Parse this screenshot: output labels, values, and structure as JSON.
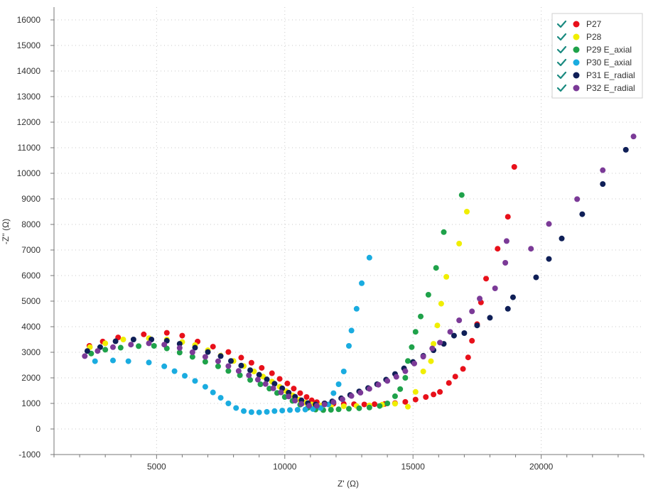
{
  "chart_data": {
    "type": "scatter",
    "xlabel": "Z' (Ω)",
    "ylabel": "-Z'' (Ω)",
    "xlim": [
      1000,
      24000
    ],
    "ylim": [
      -1000,
      16500
    ],
    "x_ticks": [
      5000,
      10000,
      15000,
      20000
    ],
    "x_tick_labels": [
      "5000",
      "10000",
      "15000",
      "20000"
    ],
    "y_ticks": [
      -1000,
      0,
      1000,
      2000,
      3000,
      4000,
      5000,
      6000,
      7000,
      8000,
      9000,
      10000,
      11000,
      12000,
      13000,
      14000,
      15000,
      16000
    ],
    "y_tick_labels": [
      "-1000",
      "0",
      "1000",
      "2000",
      "3000",
      "4000",
      "5000",
      "6000",
      "7000",
      "8000",
      "9000",
      "10000",
      "11000",
      "12000",
      "13000",
      "14000",
      "15000",
      "16000"
    ],
    "grid": true,
    "legend_position": "top-right",
    "series": [
      {
        "name": "P27",
        "color": "#e8101a",
        "points": [
          [
            2380,
            3250
          ],
          [
            2900,
            3420
          ],
          [
            3500,
            3580
          ],
          [
            4500,
            3700
          ],
          [
            5400,
            3760
          ],
          [
            6000,
            3650
          ],
          [
            6600,
            3420
          ],
          [
            7200,
            3220
          ],
          [
            7800,
            3010
          ],
          [
            8300,
            2790
          ],
          [
            8700,
            2590
          ],
          [
            9100,
            2390
          ],
          [
            9500,
            2180
          ],
          [
            9800,
            1960
          ],
          [
            10100,
            1780
          ],
          [
            10350,
            1580
          ],
          [
            10600,
            1400
          ],
          [
            10850,
            1250
          ],
          [
            11050,
            1120
          ],
          [
            11250,
            1050
          ],
          [
            11550,
            1000
          ],
          [
            11900,
            990
          ],
          [
            12300,
            980
          ],
          [
            12700,
            970
          ],
          [
            13100,
            960
          ],
          [
            13500,
            970
          ],
          [
            13900,
            980
          ],
          [
            14300,
            1010
          ],
          [
            14700,
            1060
          ],
          [
            15100,
            1150
          ],
          [
            15500,
            1250
          ],
          [
            15800,
            1350
          ],
          [
            16050,
            1450
          ],
          [
            16400,
            1800
          ],
          [
            16650,
            2050
          ],
          [
            16950,
            2350
          ],
          [
            17150,
            2800
          ],
          [
            17300,
            3450
          ],
          [
            17500,
            4100
          ],
          [
            17650,
            4950
          ],
          [
            17850,
            5880
          ],
          [
            18300,
            7050
          ],
          [
            18700,
            8300
          ],
          [
            18950,
            10250
          ]
        ]
      },
      {
        "name": "P28",
        "color": "#f0ee00",
        "points": [
          [
            2400,
            3200
          ],
          [
            3000,
            3350
          ],
          [
            3700,
            3500
          ],
          [
            4700,
            3550
          ],
          [
            5400,
            3500
          ],
          [
            6000,
            3400
          ],
          [
            6500,
            3280
          ],
          [
            7000,
            3080
          ],
          [
            7500,
            2870
          ],
          [
            8000,
            2660
          ],
          [
            8400,
            2460
          ],
          [
            8800,
            2250
          ],
          [
            9150,
            2050
          ],
          [
            9500,
            1850
          ],
          [
            9800,
            1650
          ],
          [
            10050,
            1480
          ],
          [
            10300,
            1320
          ],
          [
            10550,
            1150
          ],
          [
            10800,
            1030
          ],
          [
            11050,
            960
          ],
          [
            11400,
            920
          ],
          [
            11800,
            900
          ],
          [
            12300,
            890
          ],
          [
            12800,
            900
          ],
          [
            13300,
            920
          ],
          [
            13800,
            950
          ],
          [
            14300,
            990
          ],
          [
            14800,
            870
          ],
          [
            15100,
            1450
          ],
          [
            15400,
            2250
          ],
          [
            15700,
            2650
          ],
          [
            15800,
            3330
          ],
          [
            15950,
            4050
          ],
          [
            16100,
            4900
          ],
          [
            16300,
            5950
          ],
          [
            16800,
            7250
          ],
          [
            17100,
            8500
          ]
        ]
      },
      {
        "name": "P29 E_axial",
        "color": "#1fa24a",
        "points": [
          [
            2450,
            2950
          ],
          [
            3000,
            3100
          ],
          [
            3600,
            3180
          ],
          [
            4300,
            3240
          ],
          [
            4900,
            3250
          ],
          [
            5400,
            3150
          ],
          [
            5900,
            2990
          ],
          [
            6400,
            2820
          ],
          [
            6900,
            2630
          ],
          [
            7400,
            2450
          ],
          [
            7800,
            2270
          ],
          [
            8250,
            2100
          ],
          [
            8650,
            1920
          ],
          [
            9050,
            1750
          ],
          [
            9400,
            1580
          ],
          [
            9700,
            1410
          ],
          [
            10000,
            1250
          ],
          [
            10300,
            1100
          ],
          [
            10600,
            950
          ],
          [
            10900,
            830
          ],
          [
            11200,
            760
          ],
          [
            11500,
            740
          ],
          [
            11800,
            750
          ],
          [
            12100,
            770
          ],
          [
            12500,
            790
          ],
          [
            12900,
            810
          ],
          [
            13300,
            840
          ],
          [
            13700,
            900
          ],
          [
            14000,
            1000
          ],
          [
            14300,
            1280
          ],
          [
            14500,
            1560
          ],
          [
            14700,
            2000
          ],
          [
            14800,
            2660
          ],
          [
            14950,
            3200
          ],
          [
            15100,
            3800
          ],
          [
            15300,
            4400
          ],
          [
            15600,
            5250
          ],
          [
            15900,
            6300
          ],
          [
            16200,
            7700
          ],
          [
            16900,
            9150
          ]
        ]
      },
      {
        "name": "P30 E_axial",
        "color": "#1aace0",
        "points": [
          [
            2600,
            2650
          ],
          [
            3300,
            2680
          ],
          [
            3900,
            2650
          ],
          [
            4700,
            2600
          ],
          [
            5300,
            2450
          ],
          [
            5700,
            2260
          ],
          [
            6100,
            2080
          ],
          [
            6500,
            1880
          ],
          [
            6900,
            1650
          ],
          [
            7200,
            1430
          ],
          [
            7500,
            1220
          ],
          [
            7800,
            1000
          ],
          [
            8100,
            820
          ],
          [
            8400,
            700
          ],
          [
            8700,
            660
          ],
          [
            9000,
            650
          ],
          [
            9300,
            670
          ],
          [
            9600,
            700
          ],
          [
            9900,
            720
          ],
          [
            10200,
            740
          ],
          [
            10500,
            750
          ],
          [
            10800,
            760
          ],
          [
            11100,
            780
          ],
          [
            11400,
            820
          ],
          [
            11700,
            960
          ],
          [
            11900,
            1400
          ],
          [
            12100,
            1750
          ],
          [
            12300,
            2250
          ],
          [
            12500,
            3250
          ],
          [
            12600,
            3850
          ],
          [
            12800,
            4700
          ],
          [
            13000,
            5700
          ],
          [
            13300,
            6700
          ]
        ]
      },
      {
        "name": "P31 E_radial",
        "color": "#0f1f57",
        "points": [
          [
            2300,
            3050
          ],
          [
            2800,
            3200
          ],
          [
            3400,
            3430
          ],
          [
            4100,
            3500
          ],
          [
            4800,
            3500
          ],
          [
            5400,
            3450
          ],
          [
            5900,
            3330
          ],
          [
            6500,
            3180
          ],
          [
            7000,
            3010
          ],
          [
            7500,
            2850
          ],
          [
            7900,
            2660
          ],
          [
            8300,
            2480
          ],
          [
            8650,
            2300
          ],
          [
            9000,
            2120
          ],
          [
            9300,
            1940
          ],
          [
            9600,
            1770
          ],
          [
            9900,
            1590
          ],
          [
            10150,
            1420
          ],
          [
            10400,
            1260
          ],
          [
            10650,
            1120
          ],
          [
            10900,
            1010
          ],
          [
            11200,
            960
          ],
          [
            11550,
            1000
          ],
          [
            11850,
            1080
          ],
          [
            12200,
            1200
          ],
          [
            12550,
            1330
          ],
          [
            12900,
            1470
          ],
          [
            13250,
            1600
          ],
          [
            13600,
            1750
          ],
          [
            13950,
            1930
          ],
          [
            14300,
            2150
          ],
          [
            14650,
            2370
          ],
          [
            15000,
            2620
          ],
          [
            15400,
            2860
          ],
          [
            15800,
            3080
          ],
          [
            16200,
            3330
          ],
          [
            16600,
            3650
          ],
          [
            17000,
            3750
          ],
          [
            17500,
            4050
          ],
          [
            18000,
            4350
          ],
          [
            18700,
            4700
          ],
          [
            18900,
            5150
          ],
          [
            19800,
            5930
          ],
          [
            20300,
            6650
          ],
          [
            20800,
            7450
          ],
          [
            21600,
            8400
          ],
          [
            22400,
            9580
          ],
          [
            23300,
            10920
          ]
        ]
      },
      {
        "name": "P32 E_radial",
        "color": "#7b3a97",
        "points": [
          [
            2200,
            2850
          ],
          [
            2700,
            3050
          ],
          [
            3300,
            3200
          ],
          [
            4000,
            3300
          ],
          [
            4700,
            3350
          ],
          [
            5300,
            3300
          ],
          [
            5900,
            3170
          ],
          [
            6400,
            3000
          ],
          [
            6900,
            2820
          ],
          [
            7400,
            2650
          ],
          [
            7800,
            2460
          ],
          [
            8200,
            2270
          ],
          [
            8600,
            2100
          ],
          [
            8950,
            1930
          ],
          [
            9250,
            1760
          ],
          [
            9550,
            1590
          ],
          [
            9850,
            1430
          ],
          [
            10150,
            1270
          ],
          [
            10400,
            1110
          ],
          [
            10650,
            980
          ],
          [
            10950,
            910
          ],
          [
            11250,
            910
          ],
          [
            11550,
            960
          ],
          [
            11900,
            1050
          ],
          [
            12250,
            1160
          ],
          [
            12600,
            1290
          ],
          [
            12950,
            1420
          ],
          [
            13300,
            1570
          ],
          [
            13650,
            1730
          ],
          [
            14000,
            1880
          ],
          [
            14350,
            2040
          ],
          [
            14700,
            2260
          ],
          [
            15050,
            2560
          ],
          [
            15400,
            2830
          ],
          [
            15750,
            3150
          ],
          [
            16050,
            3380
          ],
          [
            16450,
            3800
          ],
          [
            16800,
            4250
          ],
          [
            17300,
            4600
          ],
          [
            17600,
            5100
          ],
          [
            18200,
            5500
          ],
          [
            18600,
            6500
          ],
          [
            18650,
            7350
          ],
          [
            19600,
            7050
          ],
          [
            20300,
            8020
          ],
          [
            21400,
            8990
          ],
          [
            22400,
            10120
          ],
          [
            23600,
            11440
          ]
        ]
      }
    ]
  }
}
